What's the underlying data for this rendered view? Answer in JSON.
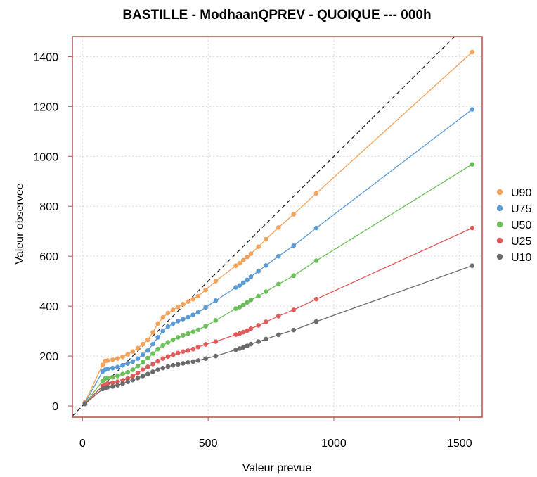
{
  "chart_data": {
    "type": "line",
    "title": "BASTILLE - ModhaanQPREV - QUOIQUE --- 000h",
    "xlabel": "Valeur prevue",
    "ylabel": "Valeur observee",
    "xlim": [
      -40,
      1590
    ],
    "ylim": [
      -45,
      1480
    ],
    "xticks": [
      0,
      500,
      1000,
      1500
    ],
    "yticks": [
      0,
      200,
      400,
      600,
      800,
      1000,
      1200,
      1400
    ],
    "grid": true,
    "legend_position": "right",
    "reference_line": "y = x (dashed)",
    "x": [
      10,
      80,
      90,
      100,
      120,
      140,
      160,
      180,
      200,
      220,
      240,
      260,
      280,
      300,
      320,
      340,
      360,
      380,
      400,
      420,
      440,
      460,
      490,
      530,
      610,
      625,
      640,
      655,
      670,
      700,
      730,
      780,
      840,
      930,
      1550
    ],
    "series": [
      {
        "name": "U90",
        "color": "#F4A259",
        "values": [
          15,
          165,
          180,
          182,
          185,
          190,
          197,
          207,
          218,
          232,
          248,
          265,
          295,
          330,
          355,
          372,
          385,
          397,
          408,
          418,
          428,
          440,
          465,
          500,
          562,
          572,
          584,
          597,
          610,
          638,
          668,
          715,
          768,
          852,
          1418
        ]
      },
      {
        "name": "U75",
        "color": "#5B9BD5",
        "values": [
          12,
          138,
          145,
          148,
          152,
          156,
          163,
          170,
          178,
          190,
          205,
          222,
          248,
          275,
          300,
          318,
          330,
          340,
          348,
          355,
          365,
          375,
          395,
          422,
          475,
          483,
          494,
          505,
          518,
          540,
          563,
          600,
          642,
          713,
          1188
        ]
      },
      {
        "name": "U50",
        "color": "#6BBF59",
        "values": [
          10,
          100,
          110,
          112,
          115,
          120,
          128,
          135,
          145,
          160,
          175,
          192,
          210,
          228,
          243,
          255,
          265,
          275,
          283,
          290,
          297,
          305,
          320,
          343,
          390,
          396,
          405,
          415,
          425,
          440,
          458,
          488,
          522,
          582,
          968
        ]
      },
      {
        "name": "U25",
        "color": "#E05A5A",
        "values": [
          9,
          80,
          85,
          90,
          93,
          97,
          103,
          110,
          120,
          132,
          145,
          157,
          168,
          180,
          190,
          198,
          205,
          212,
          218,
          222,
          228,
          236,
          247,
          258,
          286,
          290,
          296,
          302,
          310,
          323,
          337,
          360,
          385,
          428,
          713
        ]
      },
      {
        "name": "U10",
        "color": "#6B6B6B",
        "values": [
          8,
          68,
          72,
          75,
          78,
          83,
          90,
          97,
          104,
          112,
          120,
          128,
          137,
          145,
          152,
          158,
          163,
          167,
          171,
          174,
          178,
          182,
          190,
          200,
          225,
          230,
          235,
          241,
          248,
          258,
          268,
          285,
          304,
          338,
          562
        ]
      }
    ]
  }
}
